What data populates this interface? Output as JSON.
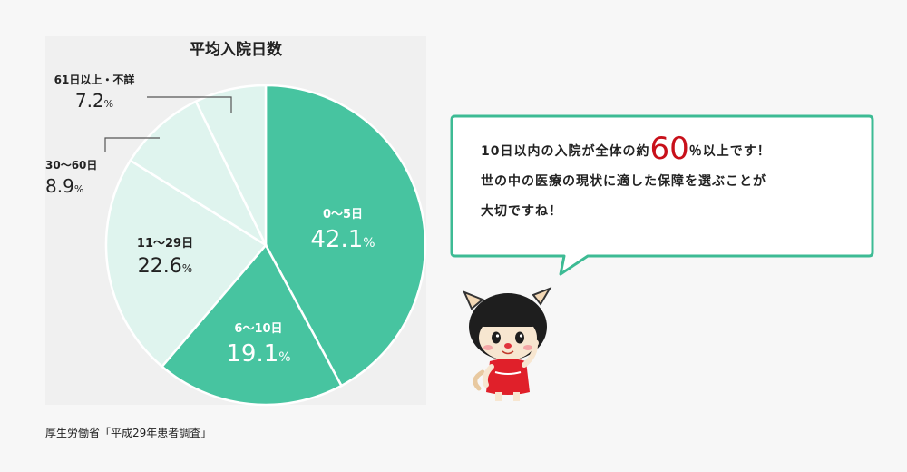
{
  "chart_data": {
    "type": "pie",
    "title": "平均入院日数",
    "categories": [
      "0〜5日",
      "6〜10日",
      "11〜29日",
      "30〜60日",
      "61日以上・不詳"
    ],
    "values": [
      42.1,
      19.1,
      22.6,
      8.9,
      7.2
    ],
    "unit": "%",
    "colors": [
      "#47c4a0",
      "#47c4a0",
      "#dff4ee",
      "#dff4ee",
      "#dff4ee"
    ],
    "legend": "none"
  },
  "source": "厚生労働省「平成29年患者調査」",
  "bubble": {
    "line1_a": "10日以内の入院が全体の約",
    "line1_num": "60",
    "line1_b": "％以上です！",
    "line2": "世の中の医療の現状に適した保障を選ぶことが",
    "line3": "大切ですね！"
  },
  "colors": {
    "accent": "#47c4a0",
    "light": "#dff4ee",
    "bubble_border": "#3dbb94",
    "highlight": "#c8101a"
  }
}
